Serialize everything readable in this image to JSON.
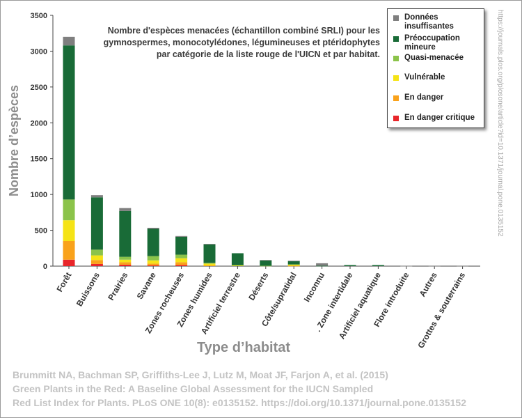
{
  "chart_data": {
    "type": "bar",
    "stacked": true,
    "title": "Nombre d'espèces  menacées  (échantillon combiné SRLI)  pour les\ngymnospermes, monocotylédones, légumineuses et ptéridophytes\npar catégorie de la liste rouge de l'UICN et par habitat.",
    "xlabel": "Type d’habitat",
    "ylabel": "Nombre d’espèces",
    "ylim": [
      0,
      3500
    ],
    "yticks": [
      "0",
      "500",
      "1000",
      "1500",
      "2000",
      "2500",
      "3000",
      "3500"
    ],
    "grid": false,
    "legend_position": "top-right",
    "categories": [
      "Forêt",
      "Buissons",
      "Prairies",
      "Savane",
      "Zones rocheuses",
      "Zones humides",
      "Artificiel terrestre",
      "Déserts",
      "Côte/supratidal",
      "Inconnu",
      ". Zone intertidale",
      "Artificiel aquatique",
      "Flore introduite",
      "Autres",
      "Grottes & souterrains"
    ],
    "series": [
      {
        "name": "En danger critique",
        "color": "#e8262a",
        "values": [
          90,
          30,
          20,
          10,
          15,
          0,
          0,
          0,
          0,
          0,
          0,
          0,
          0,
          0,
          0
        ]
      },
      {
        "name": "En danger",
        "color": "#f9a21b",
        "values": [
          260,
          55,
          35,
          25,
          40,
          10,
          0,
          0,
          5,
          0,
          0,
          0,
          0,
          0,
          0
        ]
      },
      {
        "name": "Vulnérable",
        "color": "#f5e316",
        "values": [
          290,
          65,
          35,
          45,
          55,
          25,
          10,
          0,
          15,
          0,
          0,
          0,
          0,
          0,
          0
        ]
      },
      {
        "name": "Quasi-menacée",
        "color": "#8bc34a",
        "values": [
          290,
          80,
          40,
          60,
          50,
          10,
          5,
          5,
          5,
          0,
          0,
          0,
          0,
          0,
          0
        ]
      },
      {
        "name": "Préoccupation mineure",
        "color": "#196b37",
        "values": [
          2150,
          730,
          640,
          380,
          250,
          260,
          165,
          75,
          45,
          5,
          15,
          15,
          0,
          0,
          0
        ]
      },
      {
        "name": "Données insuffisantes",
        "color": "#7f7f7f",
        "values": [
          120,
          30,
          40,
          15,
          10,
          5,
          0,
          5,
          5,
          35,
          0,
          0,
          3,
          2,
          2
        ]
      }
    ],
    "legend_order": [
      "Données insuffisantes",
      "Préoccupation mineure",
      "Quasi-menacée",
      "Vulnérable",
      "En danger",
      "En danger critique"
    ],
    "legend_labels": [
      "Données\ninsuffisantes",
      "Préoccupation\nmineure",
      "Quasi-menacée",
      "Vulnérable",
      "En danger",
      "En danger critique"
    ]
  },
  "source_url": "https://journals.plos.org/plosone/article?id=10.1371/journal.pone.0135152",
  "citation": "Brummitt NA, Bachman SP, Griffiths-Lee J, Lutz M, Moat JF, Farjon A, et al. (2015)\nGreen Plants in the Red: A Baseline Global Assessment for the IUCN Sampled\nRed List Index for Plants. PLoS ONE 10(8): e0135152. https://doi.org/10.1371/journal.pone.0135152"
}
